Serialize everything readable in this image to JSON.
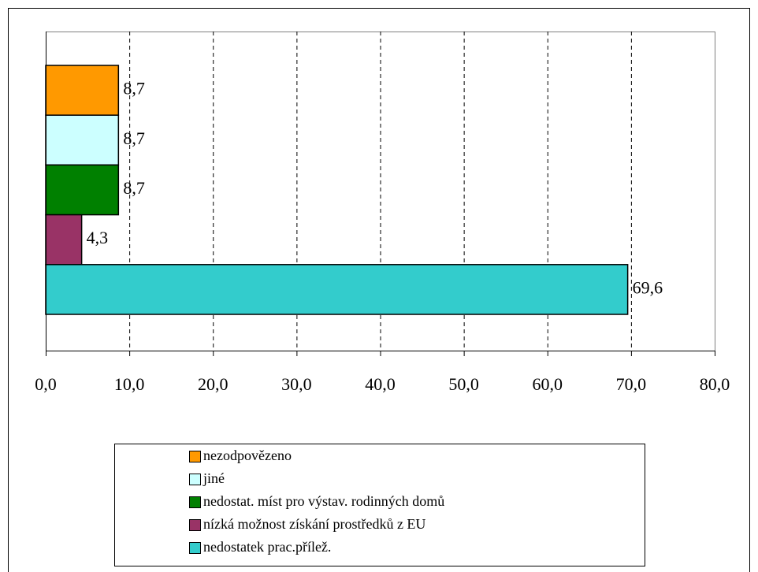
{
  "chart_data": {
    "type": "bar",
    "orientation": "horizontal",
    "series": [
      {
        "name": "nezodpovězeno",
        "color": "#ff9900",
        "values": [
          8.7
        ],
        "value_labels": [
          "8,7"
        ]
      },
      {
        "name": "jiné",
        "color": "#ccffff",
        "values": [
          8.7
        ],
        "value_labels": [
          "8,7"
        ]
      },
      {
        "name": "nedostat. míst pro výstav. rodinných domů",
        "color": "#008000",
        "values": [
          8.7
        ],
        "value_labels": [
          "8,7"
        ]
      },
      {
        "name": "nízká možnost získání prostředků z EU",
        "color": "#993366",
        "values": [
          4.3
        ],
        "value_labels": [
          "4,3"
        ]
      },
      {
        "name": "nedostatek prac.přílež.",
        "color": "#33cccc",
        "values": [
          69.6
        ],
        "value_labels": [
          "69,6"
        ]
      }
    ],
    "xlim": [
      0,
      80
    ],
    "xticks": [
      {
        "value": 0,
        "label": "0,0"
      },
      {
        "value": 10,
        "label": "10,0"
      },
      {
        "value": 20,
        "label": "20,0"
      },
      {
        "value": 30,
        "label": "30,0"
      },
      {
        "value": 40,
        "label": "40,0"
      },
      {
        "value": 50,
        "label": "50,0"
      },
      {
        "value": 60,
        "label": "60,0"
      },
      {
        "value": 70,
        "label": "70,0"
      },
      {
        "value": 80,
        "label": "80,0"
      }
    ],
    "grid": true,
    "legend": "bottom"
  }
}
